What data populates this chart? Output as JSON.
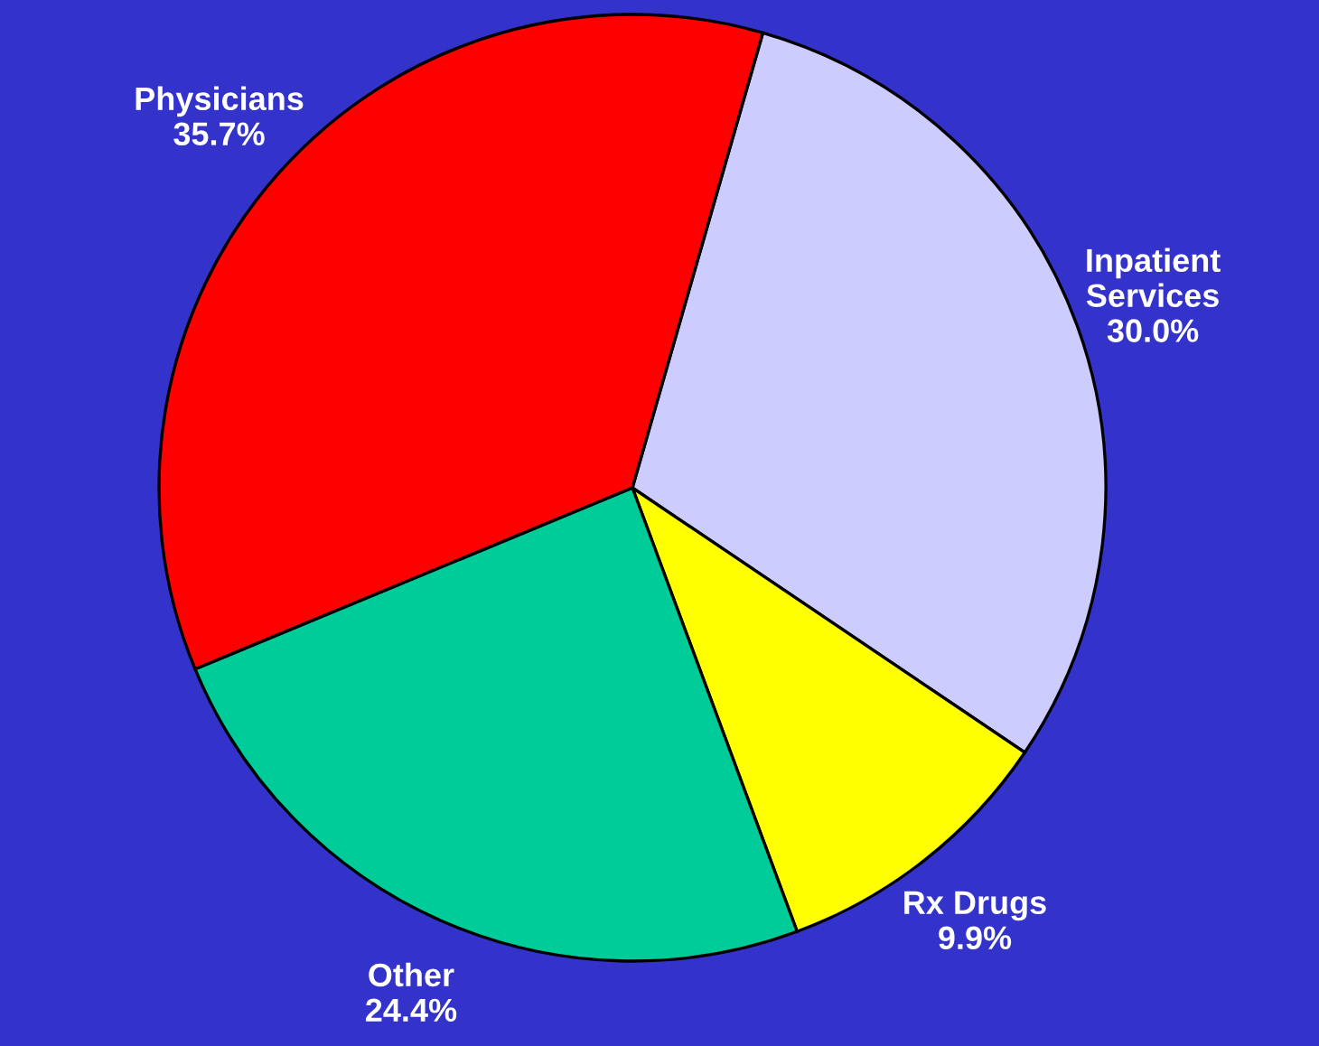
{
  "chart_data": {
    "type": "pie",
    "categories": [
      "Inpatient\nServices",
      "Rx Drugs",
      "Other",
      "Physicians"
    ],
    "values": [
      30.0,
      9.9,
      24.4,
      35.7
    ],
    "value_labels": [
      "30.0%",
      "9.9%",
      "24.4%",
      "35.7%"
    ],
    "colors": [
      "#ccccff",
      "#ffff00",
      "#00cc99",
      "#ff0000"
    ]
  }
}
